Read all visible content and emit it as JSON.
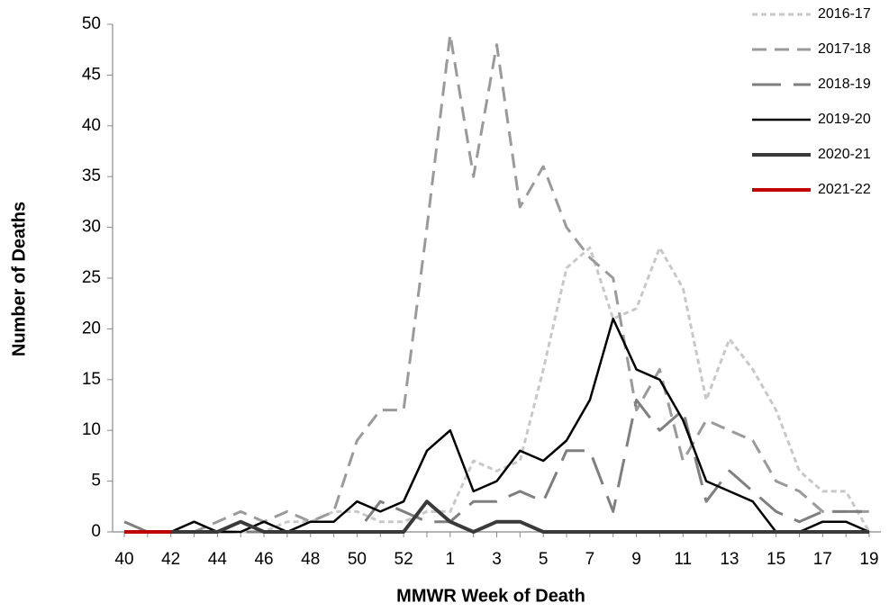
{
  "chart_data": {
    "type": "line",
    "x_label": "MMWR Week of Death",
    "y_label": "Number of Deaths",
    "categories": [
      "40",
      null,
      "42",
      null,
      "44",
      null,
      "46",
      null,
      "48",
      null,
      "50",
      null,
      "52",
      null,
      "1",
      null,
      "3",
      null,
      "5",
      null,
      "7",
      null,
      "9",
      null,
      "11",
      null,
      "13",
      null,
      "15",
      null,
      "17",
      null,
      "19"
    ],
    "ylim": [
      0,
      50
    ],
    "yticks": [
      0,
      5,
      10,
      15,
      20,
      25,
      30,
      35,
      40,
      45,
      50
    ],
    "legend": "top-right",
    "series": [
      {
        "name": "2016-17",
        "color": "#c8c8c8",
        "style": "dotted",
        "values": [
          0,
          0,
          0,
          0,
          0,
          0,
          0,
          1,
          1,
          2,
          2,
          1,
          1,
          2,
          2,
          7,
          6,
          7,
          16,
          26,
          28,
          21,
          22,
          28,
          24,
          13,
          19,
          16,
          12,
          6,
          4,
          4,
          0
        ]
      },
      {
        "name": "2017-18",
        "color": "#9a9a9a",
        "style": "dashed",
        "values": [
          0,
          0,
          0,
          0,
          1,
          2,
          1,
          2,
          1,
          2,
          9,
          12,
          12,
          30,
          49,
          35,
          48,
          32,
          36,
          30,
          27,
          25,
          12,
          16,
          7,
          11,
          10,
          9,
          5,
          4,
          2,
          2,
          2
        ]
      },
      {
        "name": "2018-19",
        "color": "#7f7f7f",
        "style": "longdash",
        "values": [
          1,
          0,
          0,
          0,
          0,
          0,
          0,
          0,
          0,
          0,
          0,
          3,
          2,
          1,
          1,
          3,
          3,
          4,
          3,
          8,
          8,
          2,
          13,
          10,
          12,
          3,
          6,
          4,
          2,
          1,
          2,
          2,
          2
        ]
      },
      {
        "name": "2019-20",
        "color": "#000000",
        "style": "solid",
        "values": [
          0,
          0,
          0,
          1,
          0,
          0,
          1,
          0,
          1,
          1,
          3,
          2,
          3,
          8,
          10,
          4,
          5,
          8,
          7,
          9,
          13,
          21,
          16,
          15,
          11,
          5,
          4,
          3,
          0,
          0,
          1,
          1,
          0
        ]
      },
      {
        "name": "2020-21",
        "color": "#3a3a3a",
        "style": "thick",
        "values": [
          0,
          0,
          0,
          0,
          0,
          1,
          0,
          0,
          0,
          0,
          0,
          0,
          0,
          3,
          1,
          0,
          1,
          1,
          0,
          0,
          0,
          0,
          0,
          0,
          0,
          0,
          0,
          0,
          0,
          0,
          0,
          0,
          0
        ]
      },
      {
        "name": "2021-22",
        "color": "#c00000",
        "style": "thick",
        "values": [
          0,
          0,
          0,
          null,
          null,
          null,
          null,
          null,
          null,
          null,
          null,
          null,
          null,
          null,
          null,
          null,
          null,
          null,
          null,
          null,
          null,
          null,
          null,
          null,
          null,
          null,
          null,
          null,
          null,
          null,
          null,
          null,
          null
        ]
      }
    ]
  }
}
